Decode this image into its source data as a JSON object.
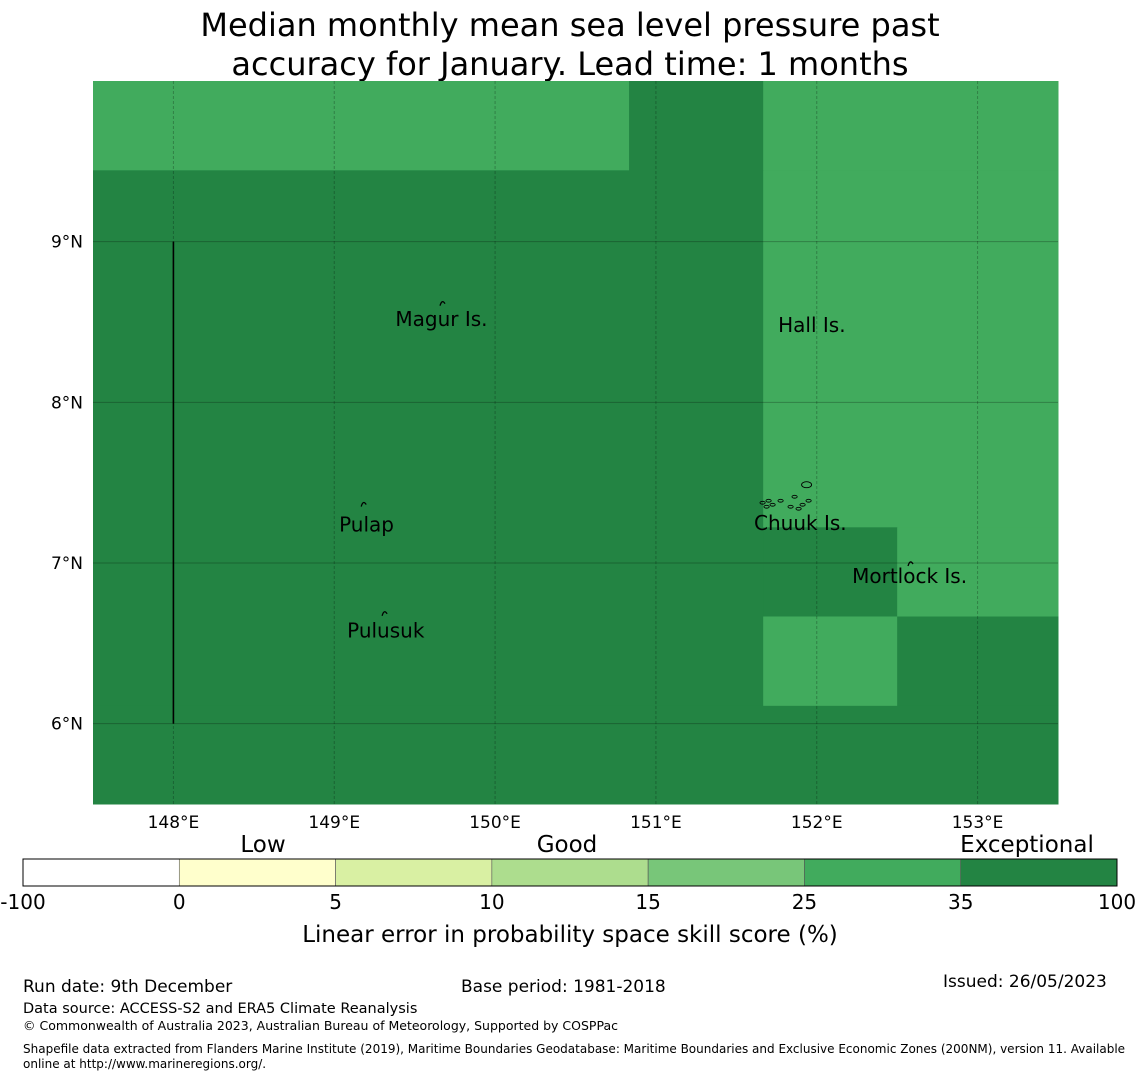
{
  "title": {
    "line1": "Median monthly mean sea level pressure past",
    "line2": "accuracy for January. Lead time: 1 months"
  },
  "map": {
    "lon_range": [
      147.5,
      153.5
    ],
    "lat_range": [
      5.5,
      10.0
    ],
    "lon_ticks": [
      {
        "value": 148,
        "label": "148°E"
      },
      {
        "value": 149,
        "label": "149°E"
      },
      {
        "value": 150,
        "label": "150°E"
      },
      {
        "value": 151,
        "label": "151°E"
      },
      {
        "value": 152,
        "label": "152°E"
      },
      {
        "value": 153,
        "label": "153°E"
      }
    ],
    "lat_ticks": [
      {
        "value": 9,
        "label": "9°N"
      },
      {
        "value": 8,
        "label": "8°N"
      },
      {
        "value": 7,
        "label": "7°N"
      },
      {
        "value": 6,
        "label": "6°N"
      }
    ],
    "colors": {
      "exceptional": "#238443",
      "band_25_35": "#41ab5d"
    },
    "cells": [
      {
        "lon": [
          147.5,
          150.833
        ],
        "lat": [
          9.444,
          10.0
        ],
        "category": "band_25_35"
      },
      {
        "lon": [
          150.833,
          151.667
        ],
        "lat": [
          9.444,
          10.0
        ],
        "category": "exceptional"
      },
      {
        "lon": [
          151.667,
          153.5
        ],
        "lat": [
          9.444,
          10.0
        ],
        "category": "band_25_35"
      },
      {
        "lon": [
          147.5,
          151.667
        ],
        "lat": [
          5.5,
          9.444
        ],
        "category": "exceptional"
      },
      {
        "lon": [
          151.667,
          153.5
        ],
        "lat": [
          7.222,
          9.444
        ],
        "category": "band_25_35"
      },
      {
        "lon": [
          151.667,
          152.5
        ],
        "lat": [
          6.667,
          7.222
        ],
        "category": "exceptional"
      },
      {
        "lon": [
          152.5,
          153.5
        ],
        "lat": [
          6.667,
          7.222
        ],
        "category": "band_25_35"
      },
      {
        "lon": [
          151.667,
          152.5
        ],
        "lat": [
          6.111,
          6.667
        ],
        "category": "band_25_35"
      },
      {
        "lon": [
          152.5,
          153.5
        ],
        "lat": [
          6.111,
          6.667
        ],
        "category": "exceptional"
      },
      {
        "lon": [
          147.5,
          153.5
        ],
        "lat": [
          5.5,
          6.111
        ],
        "category": "exceptional"
      }
    ],
    "boundary_line": {
      "lon": 148.0,
      "lat": [
        6.0,
        9.0
      ]
    },
    "places": [
      {
        "name": "Magur Is.",
        "lon": 149.38,
        "lat": 8.52,
        "island": [
          149.67,
          8.62
        ]
      },
      {
        "name": "Hall Is.",
        "lon": 151.76,
        "lat": 8.48,
        "island": null
      },
      {
        "name": "Pulap",
        "lon": 149.03,
        "lat": 7.24,
        "island": [
          149.18,
          7.37
        ]
      },
      {
        "name": "Chuuk Is.",
        "lon": 151.61,
        "lat": 7.25,
        "island": [
          151.8,
          7.4
        ]
      },
      {
        "name": "Mortlock Is.",
        "lon": 152.22,
        "lat": 6.92,
        "island": [
          152.58,
          7.0
        ]
      },
      {
        "name": "Pulusuk",
        "lon": 149.08,
        "lat": 6.58,
        "island": [
          149.31,
          6.69
        ]
      }
    ]
  },
  "colorbar": {
    "category_labels": [
      "Low",
      "Good",
      "Exceptional"
    ],
    "boundaries": [
      "-100",
      "0",
      "5",
      "10",
      "15",
      "25",
      "35",
      "100"
    ],
    "colors": [
      "#ffffff",
      "#ffffcc",
      "#d9f0a3",
      "#addd8e",
      "#78c679",
      "#41ab5d",
      "#238443"
    ],
    "xlabel": "Linear error in probability space skill score (%)"
  },
  "footer": {
    "run_date": "Run date: 9th December",
    "base_period": "Base period: 1981-2018",
    "issued": "Issued: 26/05/2023",
    "data_source": "Data source: ACCESS-S2 and ERA5 Climate Reanalysis",
    "copyright": "© Commonwealth of Australia 2023, Australian Bureau of Meteorology, Supported by COSPPac",
    "shapefile_line1": "Shapefile data extracted from Flanders Marine Institute (2019), Maritime Boundaries Geodatabase: Maritime Boundaries and Exclusive Economic Zones (200NM), version 11. Available",
    "shapefile_line2": "online at http://www.marineregions.org/."
  }
}
